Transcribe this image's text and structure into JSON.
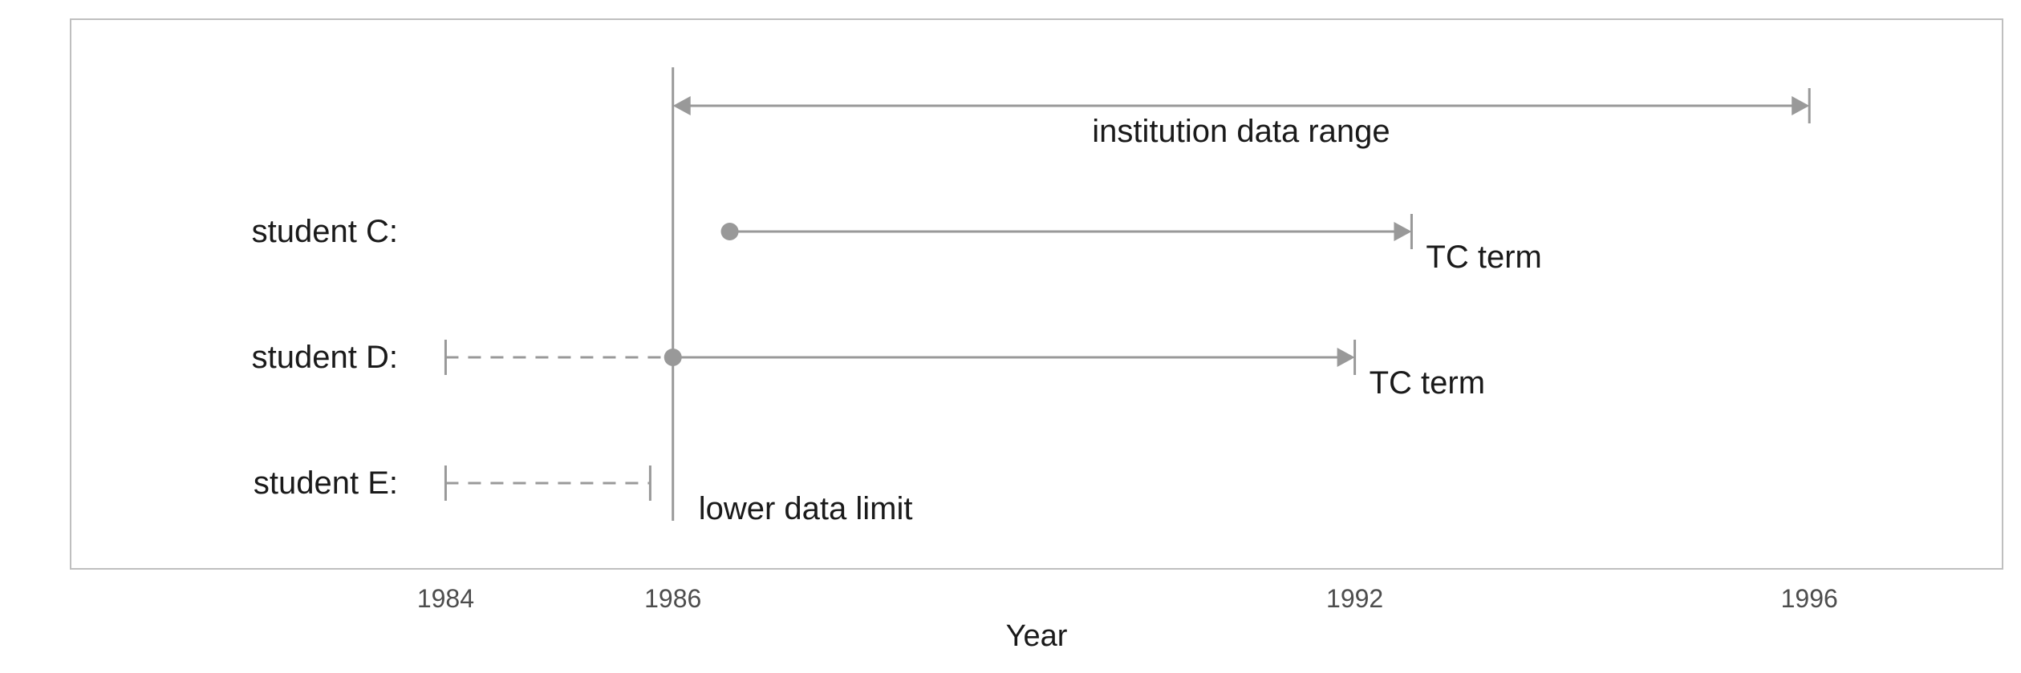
{
  "chart_data": {
    "type": "timeline",
    "xlabel": "Year",
    "x_ticks": [
      1984,
      1986,
      1992,
      1996
    ],
    "xlim": [
      1980.7,
      1997.7
    ],
    "grid": false,
    "colors": {
      "marks": "#999999",
      "panel_border": "#bfbfbf",
      "text": "#1a1a1a"
    },
    "institution_range": {
      "start": 1986,
      "end": 1996,
      "label": "institution data range"
    },
    "lower_limit": {
      "x": 1986,
      "label": "lower data limit"
    },
    "students": [
      {
        "name": "student C:",
        "start": 1986.5,
        "end": 1992.5,
        "dashed_from": null,
        "dashed_to": null,
        "term_label": "TC term"
      },
      {
        "name": "student D:",
        "start": 1986.0,
        "end": 1992.0,
        "dashed_from": 1984,
        "dashed_to": 1986,
        "term_label": "TC term"
      },
      {
        "name": "student E:",
        "start": null,
        "end": null,
        "dashed_from": 1984,
        "dashed_to": 1985.8,
        "term_label": null
      }
    ]
  }
}
